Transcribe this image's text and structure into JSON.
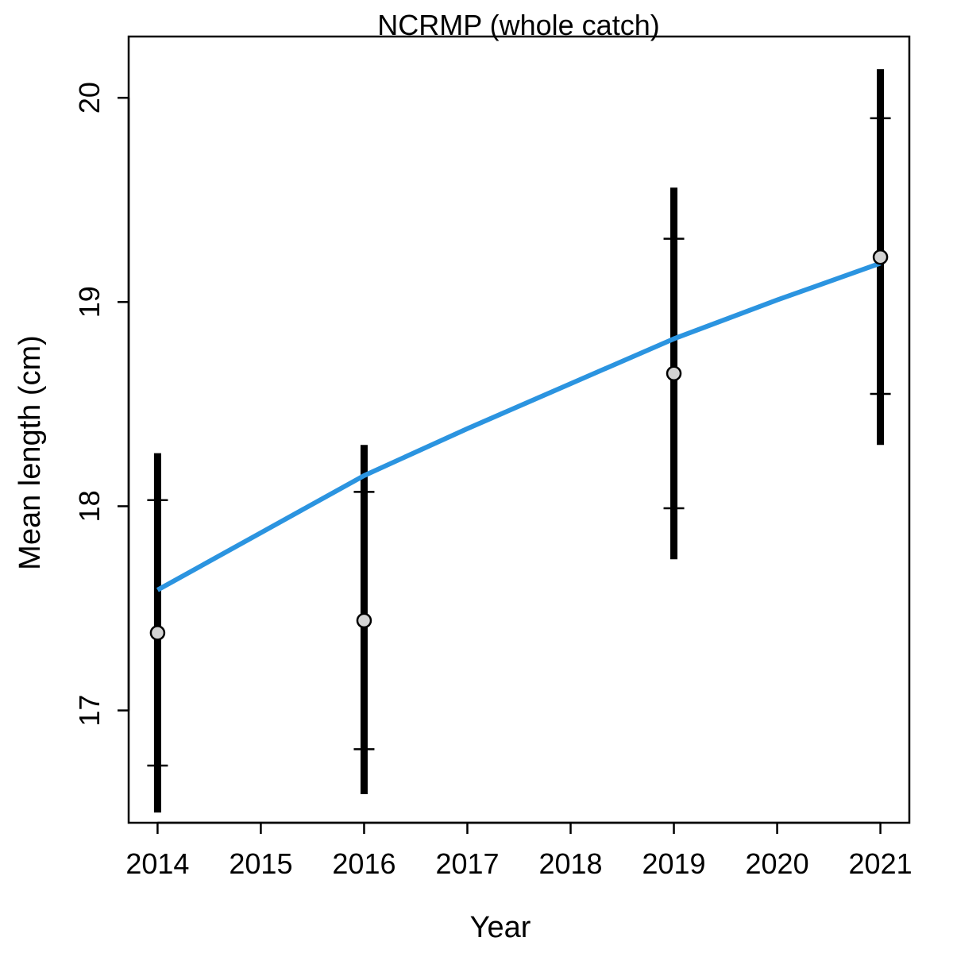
{
  "chart_data": {
    "type": "scatter",
    "title": "NCRMP (whole catch)",
    "xlabel": "Year",
    "ylabel": "Mean length (cm)",
    "xlim": [
      2013.72,
      2021.28
    ],
    "ylim": [
      16.45,
      20.3
    ],
    "x_ticks": [
      "2014",
      "2015",
      "2016",
      "2017",
      "2018",
      "2019",
      "2020",
      "2021"
    ],
    "y_ticks": [
      "17",
      "18",
      "19",
      "20"
    ],
    "points": [
      {
        "x": 2014,
        "y": 17.38,
        "inner_lo": 16.73,
        "inner_hi": 18.03,
        "outer_lo": 16.5,
        "outer_hi": 18.26
      },
      {
        "x": 2016,
        "y": 17.44,
        "inner_lo": 16.81,
        "inner_hi": 18.07,
        "outer_lo": 16.59,
        "outer_hi": 18.3
      },
      {
        "x": 2019,
        "y": 18.65,
        "inner_lo": 17.99,
        "inner_hi": 19.31,
        "outer_lo": 17.74,
        "outer_hi": 19.56
      },
      {
        "x": 2021,
        "y": 19.22,
        "inner_lo": 18.55,
        "inner_hi": 19.9,
        "outer_lo": 18.3,
        "outer_hi": 20.14
      }
    ],
    "fit_line": {
      "x": [
        2014,
        2015,
        2016,
        2017,
        2018,
        2019,
        2020,
        2021
      ],
      "y": [
        17.59,
        17.87,
        18.15,
        18.38,
        18.6,
        18.82,
        19.01,
        19.19
      ]
    },
    "colors": {
      "fit_line": "#2b94e0",
      "point_fill": "#d3d3d3",
      "error_bar": "#000000"
    }
  }
}
